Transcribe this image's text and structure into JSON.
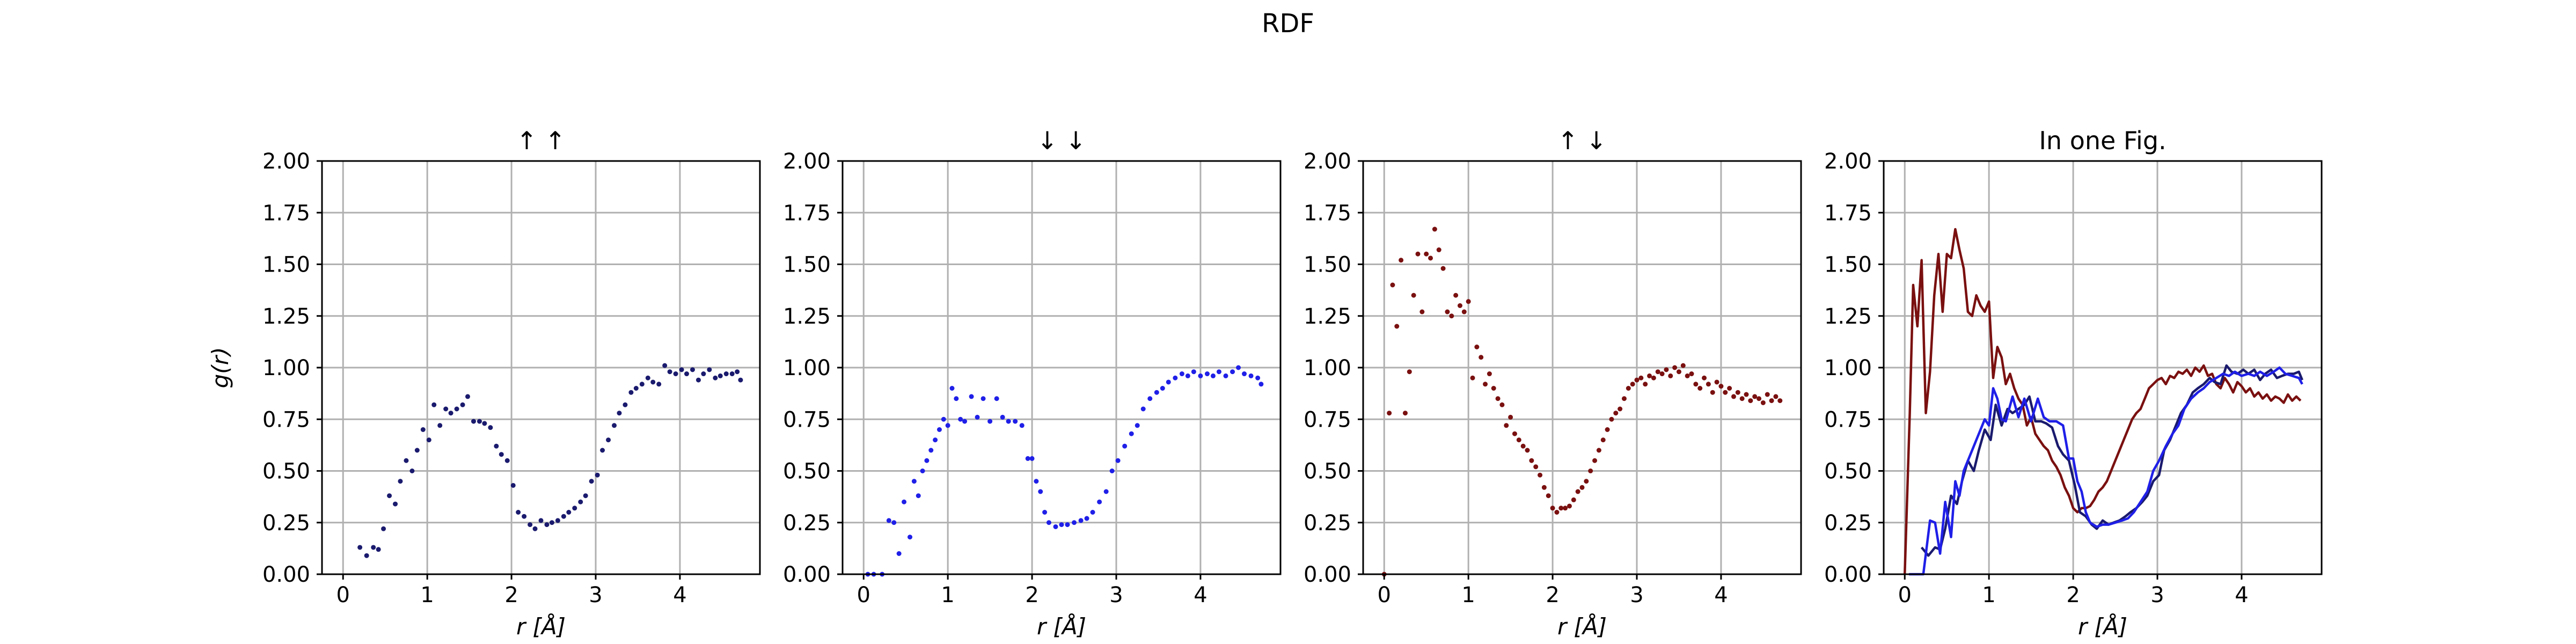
{
  "figure_title": "RDF",
  "chart_data": [
    {
      "type": "scatter",
      "title": "↑ ↑",
      "xlabel": "r [Å]",
      "ylabel": "g(r)",
      "xlim": [
        -0.25,
        4.95
      ],
      "ylim": [
        0,
        2
      ],
      "xticks": [
        0,
        1,
        2,
        3,
        4
      ],
      "yticks": [
        "0.00",
        "0.25",
        "0.50",
        "0.75",
        "1.00",
        "1.25",
        "1.50",
        "1.75",
        "2.00"
      ],
      "grid": true,
      "series": [
        {
          "color": "#1a1a6e",
          "x": [
            0.2,
            0.28,
            0.36,
            0.42,
            0.48,
            0.55,
            0.62,
            0.68,
            0.75,
            0.82,
            0.88,
            0.95,
            1.02,
            1.08,
            1.15,
            1.22,
            1.28,
            1.35,
            1.42,
            1.48,
            1.55,
            1.62,
            1.68,
            1.75,
            1.82,
            1.88,
            1.95,
            2.02,
            2.08,
            2.15,
            2.22,
            2.28,
            2.35,
            2.42,
            2.48,
            2.55,
            2.62,
            2.68,
            2.75,
            2.82,
            2.88,
            2.95,
            3.02,
            3.08,
            3.15,
            3.22,
            3.28,
            3.35,
            3.42,
            3.48,
            3.55,
            3.62,
            3.68,
            3.75,
            3.82,
            3.88,
            3.95,
            4.02,
            4.08,
            4.15,
            4.22,
            4.28,
            4.35,
            4.42,
            4.48,
            4.55,
            4.62,
            4.68,
            4.72
          ],
          "y": [
            0.13,
            0.09,
            0.13,
            0.12,
            0.22,
            0.38,
            0.34,
            0.45,
            0.55,
            0.5,
            0.6,
            0.7,
            0.65,
            0.82,
            0.72,
            0.8,
            0.78,
            0.8,
            0.82,
            0.86,
            0.74,
            0.74,
            0.73,
            0.71,
            0.62,
            0.58,
            0.55,
            0.43,
            0.3,
            0.28,
            0.24,
            0.22,
            0.26,
            0.24,
            0.25,
            0.26,
            0.28,
            0.3,
            0.32,
            0.35,
            0.38,
            0.45,
            0.48,
            0.6,
            0.65,
            0.72,
            0.78,
            0.82,
            0.88,
            0.9,
            0.92,
            0.95,
            0.93,
            0.92,
            1.01,
            0.98,
            0.97,
            0.99,
            0.97,
            0.99,
            0.94,
            0.97,
            0.99,
            0.95,
            0.96,
            0.97,
            0.97,
            0.98,
            0.94
          ]
        }
      ]
    },
    {
      "type": "scatter",
      "title": "↓ ↓",
      "xlabel": "r [Å]",
      "ylabel": "",
      "xlim": [
        -0.25,
        4.95
      ],
      "ylim": [
        0,
        2
      ],
      "xticks": [
        0,
        1,
        2,
        3,
        4
      ],
      "yticks": [
        "0.00",
        "0.25",
        "0.50",
        "0.75",
        "1.00",
        "1.25",
        "1.50",
        "1.75",
        "2.00"
      ],
      "grid": true,
      "series": [
        {
          "color": "#1f1fe8",
          "x": [
            0.05,
            0.12,
            0.22,
            0.3,
            0.36,
            0.42,
            0.48,
            0.55,
            0.6,
            0.65,
            0.7,
            0.75,
            0.8,
            0.85,
            0.9,
            0.95,
            1.0,
            1.05,
            1.1,
            1.15,
            1.2,
            1.28,
            1.35,
            1.42,
            1.5,
            1.58,
            1.65,
            1.72,
            1.8,
            1.88,
            1.95,
            2.0,
            2.05,
            2.1,
            2.15,
            2.2,
            2.28,
            2.35,
            2.42,
            2.5,
            2.58,
            2.65,
            2.72,
            2.8,
            2.88,
            2.95,
            3.02,
            3.1,
            3.18,
            3.25,
            3.32,
            3.4,
            3.48,
            3.55,
            3.62,
            3.7,
            3.78,
            3.85,
            3.92,
            4.0,
            4.08,
            4.15,
            4.22,
            4.3,
            4.38,
            4.45,
            4.52,
            4.6,
            4.68,
            4.72
          ],
          "y": [
            0.0,
            0.0,
            0.0,
            0.26,
            0.25,
            0.1,
            0.35,
            0.18,
            0.45,
            0.38,
            0.5,
            0.55,
            0.6,
            0.65,
            0.7,
            0.75,
            0.72,
            0.9,
            0.85,
            0.75,
            0.74,
            0.86,
            0.76,
            0.85,
            0.74,
            0.85,
            0.76,
            0.74,
            0.74,
            0.72,
            0.56,
            0.56,
            0.45,
            0.4,
            0.3,
            0.25,
            0.23,
            0.24,
            0.24,
            0.25,
            0.26,
            0.27,
            0.3,
            0.35,
            0.4,
            0.5,
            0.55,
            0.62,
            0.68,
            0.72,
            0.8,
            0.85,
            0.88,
            0.9,
            0.93,
            0.95,
            0.97,
            0.96,
            0.98,
            0.96,
            0.97,
            0.96,
            0.98,
            0.96,
            0.98,
            1.0,
            0.97,
            0.96,
            0.95,
            0.92
          ]
        }
      ]
    },
    {
      "type": "scatter",
      "title": "↑ ↓",
      "xlabel": "r [Å]",
      "ylabel": "",
      "xlim": [
        -0.25,
        4.95
      ],
      "ylim": [
        0,
        2
      ],
      "xticks": [
        0,
        1,
        2,
        3,
        4
      ],
      "yticks": [
        "0.00",
        "0.25",
        "0.50",
        "0.75",
        "1.00",
        "1.25",
        "1.50",
        "1.75",
        "2.00"
      ],
      "grid": true,
      "series": [
        {
          "color": "#7a1010",
          "x": [
            0.0,
            0.06,
            0.1,
            0.15,
            0.2,
            0.25,
            0.3,
            0.35,
            0.4,
            0.45,
            0.5,
            0.55,
            0.6,
            0.65,
            0.7,
            0.75,
            0.8,
            0.85,
            0.9,
            0.95,
            1.0,
            1.05,
            1.1,
            1.15,
            1.2,
            1.25,
            1.3,
            1.35,
            1.4,
            1.45,
            1.5,
            1.55,
            1.6,
            1.65,
            1.7,
            1.75,
            1.8,
            1.85,
            1.9,
            1.95,
            2.0,
            2.05,
            2.1,
            2.15,
            2.2,
            2.25,
            2.3,
            2.35,
            2.4,
            2.45,
            2.5,
            2.55,
            2.6,
            2.65,
            2.7,
            2.75,
            2.8,
            2.85,
            2.9,
            2.95,
            3.0,
            3.05,
            3.1,
            3.15,
            3.2,
            3.25,
            3.3,
            3.35,
            3.4,
            3.45,
            3.5,
            3.55,
            3.6,
            3.65,
            3.7,
            3.75,
            3.8,
            3.85,
            3.9,
            3.95,
            4.0,
            4.05,
            4.1,
            4.15,
            4.2,
            4.25,
            4.3,
            4.35,
            4.4,
            4.45,
            4.5,
            4.55,
            4.6,
            4.65,
            4.7
          ],
          "y": [
            0.0,
            0.78,
            1.4,
            1.2,
            1.52,
            0.78,
            0.98,
            1.35,
            1.55,
            1.27,
            1.55,
            1.53,
            1.67,
            1.57,
            1.48,
            1.27,
            1.25,
            1.35,
            1.3,
            1.27,
            1.32,
            0.95,
            1.1,
            1.05,
            0.92,
            0.97,
            0.9,
            0.85,
            0.82,
            0.72,
            0.76,
            0.68,
            0.65,
            0.62,
            0.6,
            0.55,
            0.52,
            0.48,
            0.42,
            0.38,
            0.32,
            0.3,
            0.32,
            0.32,
            0.33,
            0.36,
            0.4,
            0.42,
            0.45,
            0.5,
            0.55,
            0.6,
            0.65,
            0.7,
            0.75,
            0.78,
            0.8,
            0.85,
            0.9,
            0.92,
            0.94,
            0.95,
            0.92,
            0.96,
            0.95,
            0.98,
            0.97,
            0.99,
            0.96,
            1.0,
            0.98,
            1.01,
            0.96,
            0.97,
            0.92,
            0.9,
            0.95,
            0.92,
            0.88,
            0.93,
            0.91,
            0.88,
            0.9,
            0.86,
            0.88,
            0.85,
            0.87,
            0.84,
            0.86,
            0.85,
            0.83,
            0.87,
            0.84,
            0.86,
            0.84
          ]
        }
      ]
    },
    {
      "type": "line",
      "title": "In one Fig.",
      "xlabel": "r [Å]",
      "ylabel": "",
      "xlim": [
        -0.25,
        4.95
      ],
      "ylim": [
        0,
        2
      ],
      "xticks": [
        0,
        1,
        2,
        3,
        4
      ],
      "yticks": [
        "0.00",
        "0.25",
        "0.50",
        "0.75",
        "1.00",
        "1.25",
        "1.50",
        "1.75",
        "2.00"
      ],
      "grid": true,
      "series": [
        {
          "color": "#7a1010",
          "x": [
            0.0,
            0.06,
            0.1,
            0.15,
            0.2,
            0.25,
            0.3,
            0.35,
            0.4,
            0.45,
            0.5,
            0.55,
            0.6,
            0.65,
            0.7,
            0.75,
            0.8,
            0.85,
            0.9,
            0.95,
            1.0,
            1.05,
            1.1,
            1.15,
            1.2,
            1.25,
            1.3,
            1.35,
            1.4,
            1.45,
            1.5,
            1.55,
            1.6,
            1.65,
            1.7,
            1.75,
            1.8,
            1.85,
            1.9,
            1.95,
            2.0,
            2.05,
            2.1,
            2.15,
            2.2,
            2.25,
            2.3,
            2.35,
            2.4,
            2.45,
            2.5,
            2.55,
            2.6,
            2.65,
            2.7,
            2.75,
            2.8,
            2.85,
            2.9,
            2.95,
            3.0,
            3.05,
            3.1,
            3.15,
            3.2,
            3.25,
            3.3,
            3.35,
            3.4,
            3.45,
            3.5,
            3.55,
            3.6,
            3.65,
            3.7,
            3.75,
            3.8,
            3.85,
            3.9,
            3.95,
            4.0,
            4.05,
            4.1,
            4.15,
            4.2,
            4.25,
            4.3,
            4.35,
            4.4,
            4.45,
            4.5,
            4.55,
            4.6,
            4.65,
            4.7
          ],
          "y": [
            0.0,
            0.78,
            1.4,
            1.2,
            1.52,
            0.78,
            0.98,
            1.35,
            1.55,
            1.27,
            1.55,
            1.53,
            1.67,
            1.57,
            1.48,
            1.27,
            1.25,
            1.35,
            1.3,
            1.27,
            1.32,
            0.95,
            1.1,
            1.05,
            0.92,
            0.97,
            0.9,
            0.85,
            0.82,
            0.72,
            0.76,
            0.68,
            0.65,
            0.62,
            0.6,
            0.55,
            0.52,
            0.48,
            0.42,
            0.38,
            0.32,
            0.3,
            0.32,
            0.32,
            0.33,
            0.36,
            0.4,
            0.42,
            0.45,
            0.5,
            0.55,
            0.6,
            0.65,
            0.7,
            0.75,
            0.78,
            0.8,
            0.85,
            0.9,
            0.92,
            0.94,
            0.95,
            0.92,
            0.96,
            0.95,
            0.98,
            0.97,
            0.99,
            0.96,
            1.0,
            0.98,
            1.01,
            0.96,
            0.97,
            0.92,
            0.9,
            0.95,
            0.92,
            0.88,
            0.93,
            0.91,
            0.88,
            0.9,
            0.86,
            0.88,
            0.85,
            0.87,
            0.84,
            0.86,
            0.85,
            0.83,
            0.87,
            0.84,
            0.86,
            0.84
          ]
        },
        {
          "color": "#1a1a6e",
          "x": [
            0.2,
            0.28,
            0.36,
            0.42,
            0.48,
            0.55,
            0.62,
            0.68,
            0.75,
            0.82,
            0.88,
            0.95,
            1.02,
            1.08,
            1.15,
            1.22,
            1.28,
            1.35,
            1.42,
            1.48,
            1.55,
            1.62,
            1.68,
            1.75,
            1.82,
            1.88,
            1.95,
            2.02,
            2.08,
            2.15,
            2.22,
            2.28,
            2.35,
            2.42,
            2.48,
            2.55,
            2.62,
            2.68,
            2.75,
            2.82,
            2.88,
            2.95,
            3.02,
            3.08,
            3.15,
            3.22,
            3.28,
            3.35,
            3.42,
            3.48,
            3.55,
            3.62,
            3.68,
            3.75,
            3.82,
            3.88,
            3.95,
            4.02,
            4.08,
            4.15,
            4.22,
            4.28,
            4.35,
            4.42,
            4.48,
            4.55,
            4.62,
            4.68,
            4.72
          ],
          "y": [
            0.13,
            0.09,
            0.13,
            0.12,
            0.22,
            0.38,
            0.34,
            0.45,
            0.55,
            0.5,
            0.6,
            0.7,
            0.65,
            0.82,
            0.72,
            0.8,
            0.78,
            0.8,
            0.82,
            0.86,
            0.74,
            0.74,
            0.73,
            0.71,
            0.62,
            0.58,
            0.55,
            0.43,
            0.3,
            0.28,
            0.24,
            0.22,
            0.26,
            0.24,
            0.25,
            0.26,
            0.28,
            0.3,
            0.32,
            0.35,
            0.38,
            0.45,
            0.48,
            0.6,
            0.65,
            0.72,
            0.78,
            0.82,
            0.88,
            0.9,
            0.92,
            0.95,
            0.93,
            0.92,
            1.01,
            0.98,
            0.97,
            0.99,
            0.97,
            0.99,
            0.94,
            0.97,
            0.99,
            0.95,
            0.96,
            0.97,
            0.97,
            0.98,
            0.94
          ]
        },
        {
          "color": "#1f1fe8",
          "x": [
            0.05,
            0.12,
            0.22,
            0.3,
            0.36,
            0.42,
            0.48,
            0.55,
            0.6,
            0.65,
            0.7,
            0.75,
            0.8,
            0.85,
            0.9,
            0.95,
            1.0,
            1.05,
            1.1,
            1.15,
            1.2,
            1.28,
            1.35,
            1.42,
            1.5,
            1.58,
            1.65,
            1.72,
            1.8,
            1.88,
            1.95,
            2.0,
            2.05,
            2.1,
            2.15,
            2.2,
            2.28,
            2.35,
            2.42,
            2.5,
            2.58,
            2.65,
            2.72,
            2.8,
            2.88,
            2.95,
            3.02,
            3.1,
            3.18,
            3.25,
            3.32,
            3.4,
            3.48,
            3.55,
            3.62,
            3.7,
            3.78,
            3.85,
            3.92,
            4.0,
            4.08,
            4.15,
            4.22,
            4.3,
            4.38,
            4.45,
            4.52,
            4.6,
            4.68,
            4.72
          ],
          "y": [
            0.0,
            0.0,
            0.0,
            0.26,
            0.25,
            0.1,
            0.35,
            0.18,
            0.45,
            0.38,
            0.5,
            0.55,
            0.6,
            0.65,
            0.7,
            0.75,
            0.72,
            0.9,
            0.85,
            0.75,
            0.74,
            0.86,
            0.76,
            0.85,
            0.74,
            0.85,
            0.76,
            0.74,
            0.74,
            0.72,
            0.56,
            0.56,
            0.45,
            0.4,
            0.3,
            0.25,
            0.23,
            0.24,
            0.24,
            0.25,
            0.26,
            0.27,
            0.3,
            0.35,
            0.4,
            0.5,
            0.55,
            0.62,
            0.68,
            0.72,
            0.8,
            0.85,
            0.88,
            0.9,
            0.93,
            0.95,
            0.97,
            0.96,
            0.98,
            0.96,
            0.97,
            0.96,
            0.98,
            0.96,
            0.98,
            1.0,
            0.97,
            0.96,
            0.95,
            0.92
          ]
        }
      ]
    }
  ]
}
